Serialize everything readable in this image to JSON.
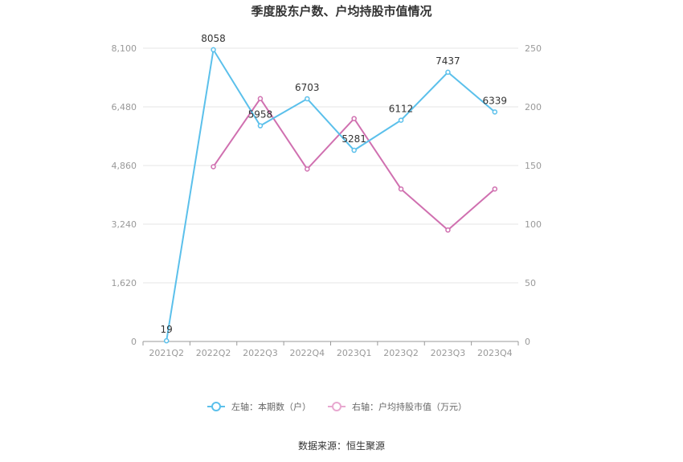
{
  "chart_data": {
    "type": "line",
    "title": "季度股东户数、户均持股市值情况",
    "categories": [
      "2021Q2",
      "2022Q2",
      "2022Q3",
      "2022Q4",
      "2023Q1",
      "2023Q2",
      "2023Q3",
      "2023Q4"
    ],
    "left_axis": {
      "min": 0,
      "max": 8100,
      "ticks": [
        "0",
        "1,620",
        "3,240",
        "4,860",
        "6,480",
        "8,100"
      ],
      "tick_values": [
        0,
        1620,
        3240,
        4860,
        6480,
        8100
      ]
    },
    "right_axis": {
      "min": 0,
      "max": 250,
      "ticks": [
        "0",
        "50",
        "100",
        "150",
        "200",
        "250"
      ],
      "tick_values": [
        0,
        50,
        100,
        150,
        200,
        250
      ]
    },
    "series": [
      {
        "name": "左轴：本期数（户）",
        "axis": "left",
        "color": "#5bc0eb",
        "values": [
          19,
          8058,
          5958,
          6703,
          5281,
          6112,
          7437,
          6339
        ],
        "labels": [
          "19",
          "8058",
          "5958",
          "6703",
          "5281",
          "6112",
          "7437",
          "6339"
        ]
      },
      {
        "name": "右轴：户均持股市值（万元）",
        "axis": "right",
        "color": "#d070b0",
        "values": [
          null,
          149,
          207,
          147,
          190,
          130,
          95,
          130
        ]
      }
    ],
    "legend_position": "bottom",
    "grid": true,
    "source": "数据来源：恒生聚源"
  }
}
